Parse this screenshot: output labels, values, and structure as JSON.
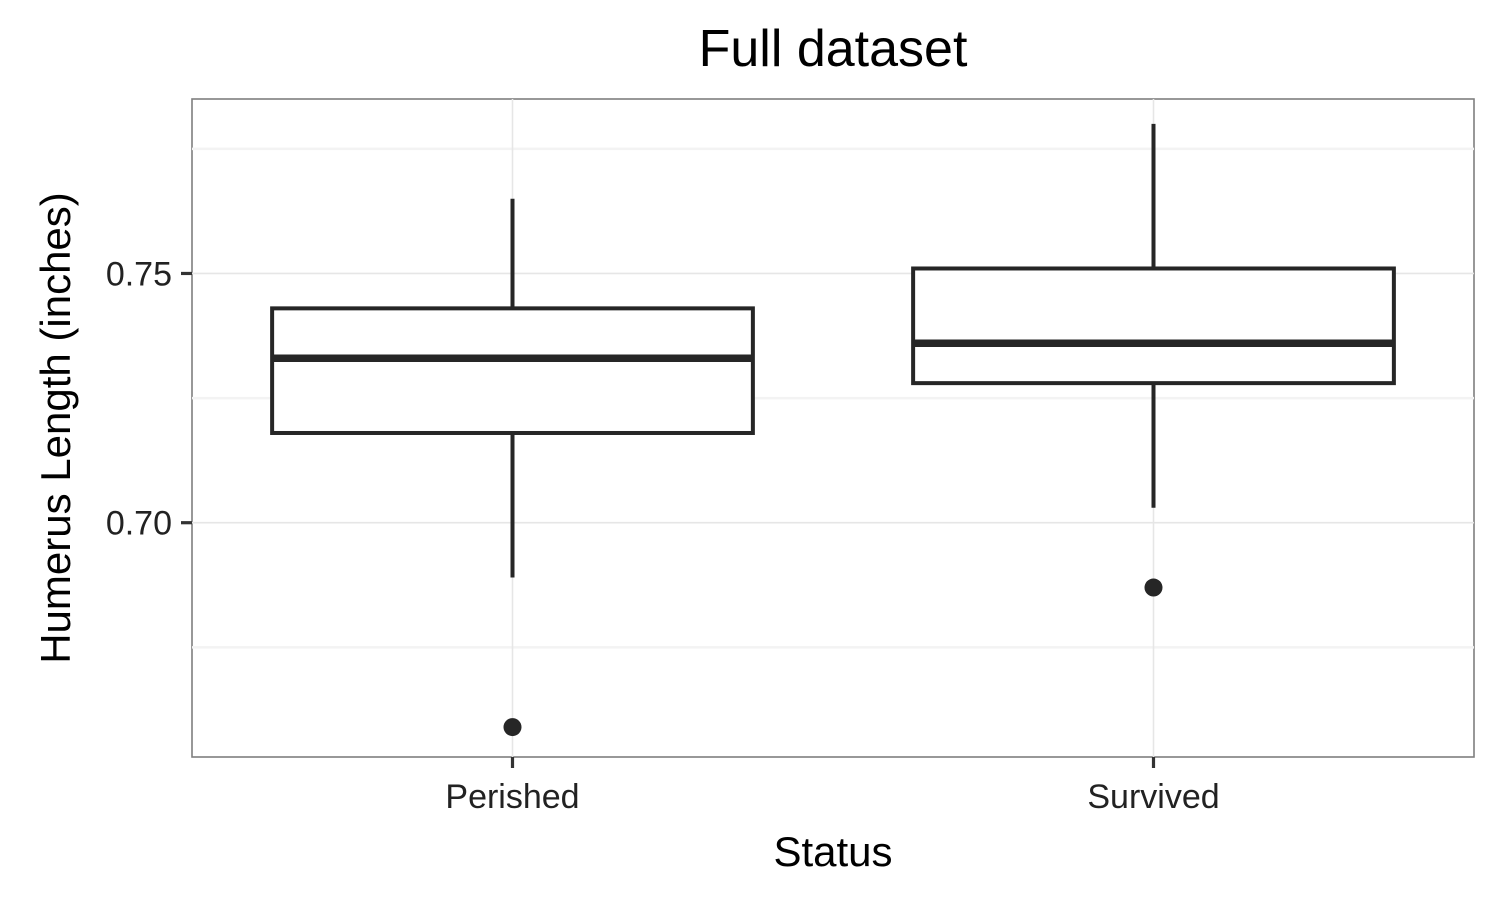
{
  "chart_data": {
    "type": "boxplot",
    "title": "Full dataset",
    "xlabel": "Status",
    "ylabel": "Humerus Length (inches)",
    "categories": [
      "Perished",
      "Survived"
    ],
    "y_ticks": [
      0.7,
      0.75
    ],
    "y_tick_labels": [
      "0.70",
      "0.75"
    ],
    "ylim": [
      0.653,
      0.785
    ],
    "grid": true,
    "boxes": [
      {
        "category": "Perished",
        "whisker_low": 0.689,
        "q1": 0.718,
        "median": 0.733,
        "q3": 0.743,
        "whisker_high": 0.765,
        "outliers": [
          0.659
        ]
      },
      {
        "category": "Survived",
        "whisker_low": 0.703,
        "q1": 0.728,
        "median": 0.736,
        "q3": 0.751,
        "whisker_high": 0.78,
        "outliers": [
          0.687
        ]
      }
    ],
    "colors": {
      "box_line": "#262626",
      "panel_border": "#7f7f7f",
      "grid": "#e6e6e6",
      "background": "#ffffff"
    }
  }
}
